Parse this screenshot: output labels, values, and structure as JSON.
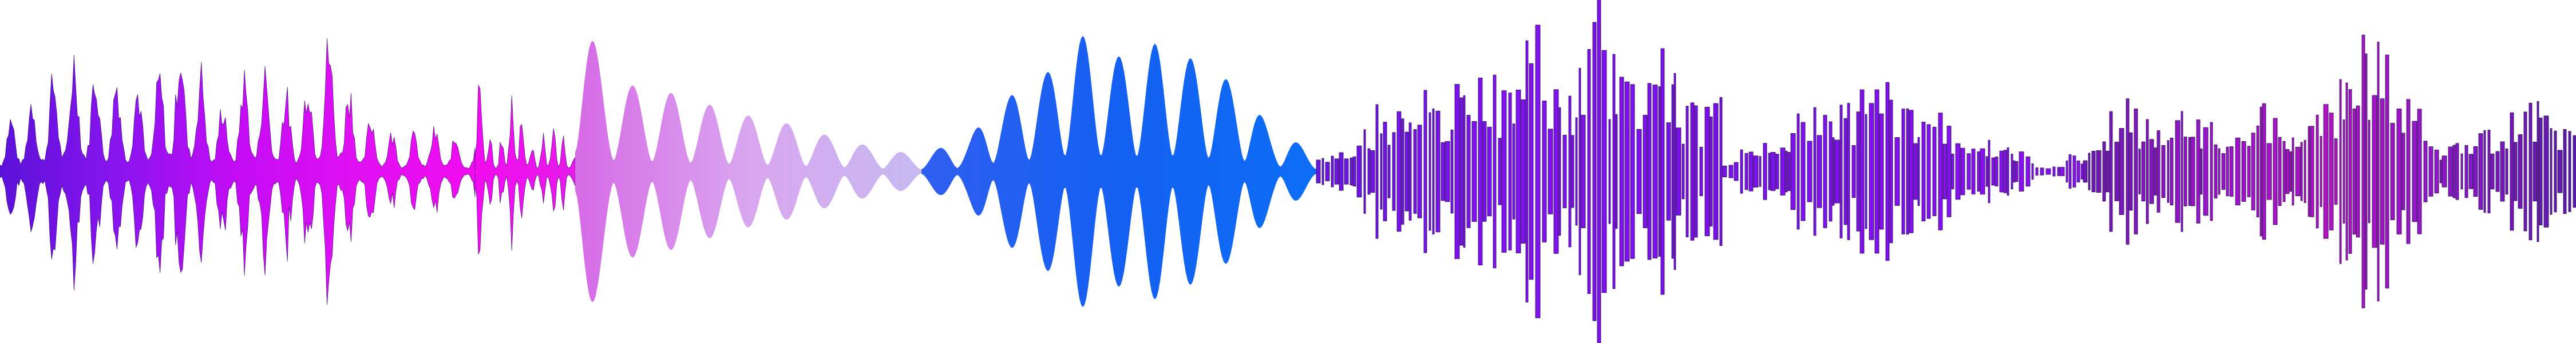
{
  "artwork": {
    "kind": "audio-waveform-illustration",
    "background_color": "#ffffff",
    "segments": [
      {
        "name": "violet-magenta-burst",
        "style": "spiky",
        "colors": [
          "#5b12d9",
          "#8a14f0",
          "#c40cf5",
          "#e010f2",
          "#f00cf0"
        ],
        "intensity": [
          0.35,
          0.55,
          0.85,
          0.7,
          0.6,
          0.95,
          0.5,
          0.75,
          0.55,
          0.95,
          0.4,
          0.25,
          0.3,
          0.18
        ]
      },
      {
        "name": "magenta-pulse",
        "style": "spiky",
        "colors": [
          "#f00cf0",
          "#e61be8"
        ],
        "intensity": [
          0.9,
          0.15,
          0.55,
          0.2,
          0.35,
          0.12
        ]
      },
      {
        "name": "lavender-fade",
        "style": "smooth",
        "colors": [
          "#d66ae6",
          "#d9a6ef",
          "#c7b9f0"
        ],
        "intensity": [
          0.98,
          0.55,
          0.5,
          0.42,
          0.35,
          0.3,
          0.22,
          0.15,
          0.1
        ]
      },
      {
        "name": "blue-lobes",
        "style": "smooth",
        "colors": [
          "#2f5ff0",
          "#1460f2",
          "#0d6ef5"
        ],
        "intensity": [
          0.12,
          0.18,
          0.45,
          0.6,
          0.85,
          0.72,
          0.8,
          0.7,
          0.55,
          0.25,
          0.12
        ]
      },
      {
        "name": "purple-bars",
        "style": "bars",
        "colors": [
          "#6a16e0",
          "#8212f2",
          "#7a10e8"
        ],
        "intensity": [
          0.08,
          0.12,
          0.4,
          0.55,
          0.35,
          0.75,
          0.5,
          0.9,
          0.45,
          0.98,
          0.6,
          0.8,
          0.4,
          0.5
        ]
      },
      {
        "name": "purple-bars-quiet",
        "style": "bars",
        "colors": [
          "#7a12ea",
          "#8a10f0"
        ],
        "intensity": [
          0.08,
          0.2,
          0.35,
          0.45,
          0.55,
          0.38,
          0.25,
          0.15,
          0.05,
          0.12
        ]
      },
      {
        "name": "plum-bars",
        "style": "bars",
        "colors": [
          "#6a1ab0",
          "#9a14c8",
          "#b014c0",
          "#8a18c8",
          "#5a1aa8"
        ],
        "intensity": [
          0.1,
          0.45,
          0.3,
          0.35,
          0.25,
          0.4,
          0.2,
          0.55,
          0.82,
          0.6,
          0.15,
          0.2,
          0.35,
          0.45,
          0.25
        ]
      }
    ]
  }
}
